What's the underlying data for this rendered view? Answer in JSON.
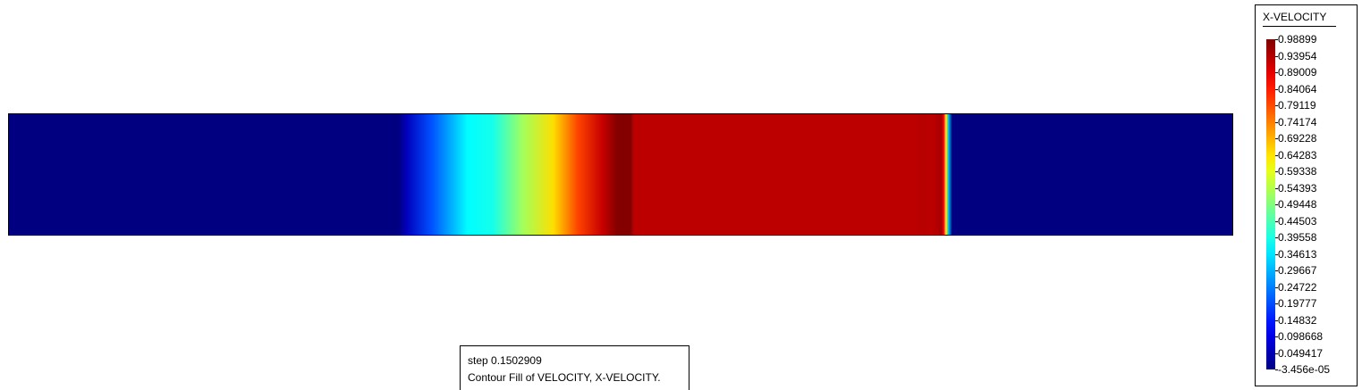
{
  "legend": {
    "title": "X-VELOCITY",
    "labels": [
      "0.98899",
      "0.93954",
      "0.89009",
      "0.84064",
      "0.79119",
      "0.74174",
      "0.69228",
      "0.64283",
      "0.59338",
      "0.54393",
      "0.49448",
      "0.44503",
      "0.39558",
      "0.34613",
      "0.29667",
      "0.24722",
      "0.19777",
      "0.14832",
      "0.098668",
      "0.049417",
      "-3.456e-05"
    ],
    "colormap": "jet"
  },
  "info": {
    "step_line": "step 0.1502909",
    "description_line": "Contour Fill of VELOCITY, X-VELOCITY."
  },
  "field": {
    "quantity": "X-VELOCITY",
    "min": -3.456e-05,
    "max": 0.98899,
    "profile": [
      {
        "pos": 0.0,
        "value": 0.0
      },
      {
        "pos": 0.318,
        "value": 0.0
      },
      {
        "pos": 0.325,
        "value": 0.06
      },
      {
        "pos": 0.345,
        "value": 0.2
      },
      {
        "pos": 0.375,
        "value": 0.37
      },
      {
        "pos": 0.395,
        "value": 0.39
      },
      {
        "pos": 0.42,
        "value": 0.53
      },
      {
        "pos": 0.445,
        "value": 0.65
      },
      {
        "pos": 0.465,
        "value": 0.8
      },
      {
        "pos": 0.485,
        "value": 0.92
      },
      {
        "pos": 0.497,
        "value": 0.985
      },
      {
        "pos": 0.508,
        "value": 0.985
      },
      {
        "pos": 0.511,
        "value": 0.93
      },
      {
        "pos": 0.74,
        "value": 0.93
      },
      {
        "pos": 0.745,
        "value": 0.935
      },
      {
        "pos": 0.755,
        "value": 0.93
      },
      {
        "pos": 0.762,
        "value": 0.95
      },
      {
        "pos": 0.764,
        "value": 0.88
      },
      {
        "pos": 0.766,
        "value": 0.6
      },
      {
        "pos": 0.768,
        "value": 0.3
      },
      {
        "pos": 0.771,
        "value": 0.0
      },
      {
        "pos": 1.0,
        "value": 0.0
      }
    ]
  }
}
